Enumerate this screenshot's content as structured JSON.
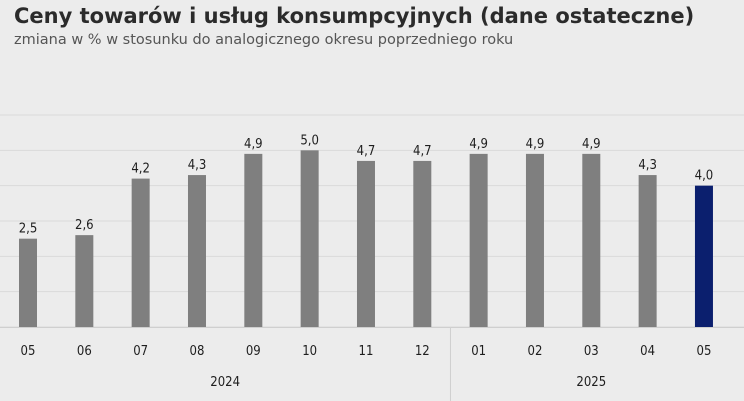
{
  "header": {
    "title": "Ceny towarów i usług konsumpcyjnych (dane ostateczne)",
    "subtitle": "zmiana w % w stosunku do analogicznego okresu poprzedniego roku"
  },
  "chart_data": {
    "type": "bar",
    "title": "Ceny towarów i usług konsumpcyjnych (dane ostateczne)",
    "subtitle": "zmiana w % w stosunku do analogicznego okresu poprzedniego roku",
    "categories": [
      "05",
      "06",
      "07",
      "08",
      "09",
      "10",
      "11",
      "12",
      "01",
      "02",
      "03",
      "04",
      "05"
    ],
    "values": [
      2.5,
      2.6,
      4.2,
      4.3,
      4.9,
      5.0,
      4.7,
      4.7,
      4.9,
      4.9,
      4.9,
      4.3,
      4.0
    ],
    "value_labels": [
      "2,5",
      "2,6",
      "4,2",
      "4,3",
      "4,9",
      "5,0",
      "4,7",
      "4,7",
      "4,9",
      "4,9",
      "4,9",
      "4,3",
      "4,0"
    ],
    "year_groups": [
      {
        "label": "2024",
        "count": 8
      },
      {
        "label": "2025",
        "count": 5
      }
    ],
    "ylim": [
      0,
      6
    ],
    "grid": true,
    "colors": {
      "bar": "#7f7f7f",
      "highlight": "#0b1f6e",
      "highlight_index": 12
    }
  }
}
